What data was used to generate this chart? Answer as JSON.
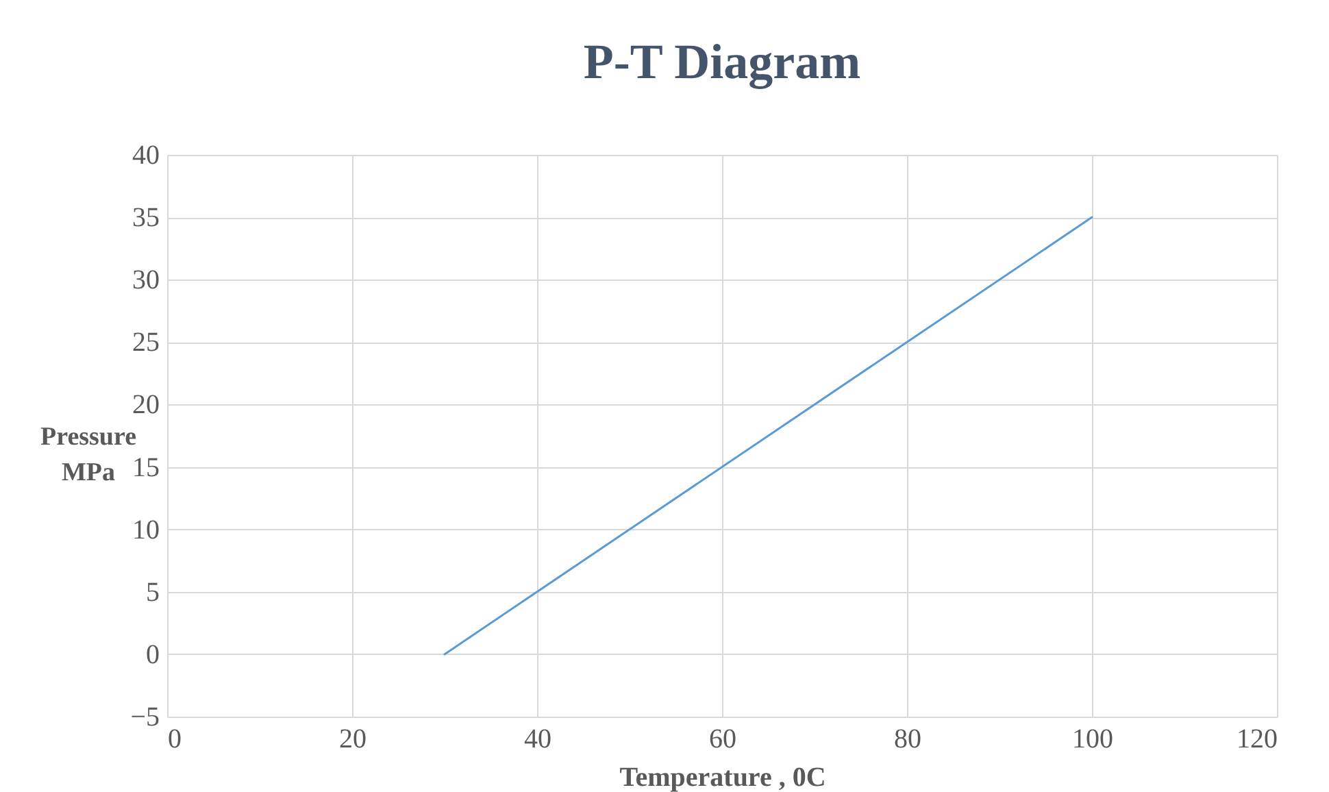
{
  "chart_data": {
    "type": "line",
    "title": "P-T Diagram",
    "xlabel": "Temperature , 0C",
    "ylabel": "Pressure MPa",
    "x": [
      30,
      100
    ],
    "series": [
      {
        "color": "#5b9bd5",
        "values": [
          0,
          35
        ]
      }
    ],
    "xlim": [
      0,
      120
    ],
    "xticks": [
      0,
      20,
      40,
      60,
      80,
      100,
      120
    ],
    "ylim": [
      -5,
      40
    ],
    "yticks": [
      -5,
      0,
      5,
      10,
      15,
      20,
      25,
      30,
      35,
      40
    ],
    "grid": true,
    "marker": "none",
    "line_style": "solid"
  }
}
